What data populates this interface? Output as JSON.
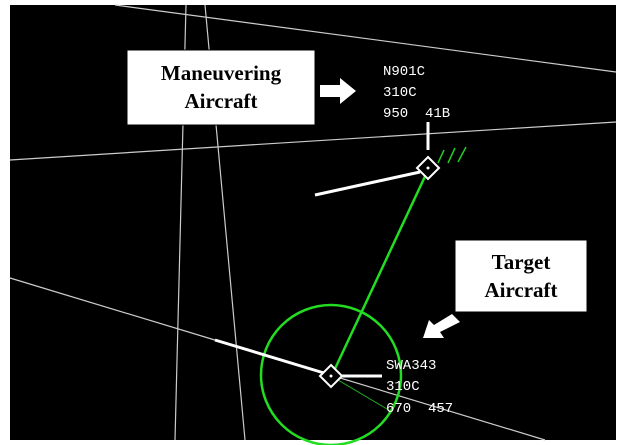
{
  "callouts": [
    {
      "lines": [
        "Maneuvering",
        "Aircraft"
      ]
    },
    {
      "lines": [
        "Target",
        "Aircraft"
      ]
    }
  ],
  "aircraft": [
    {
      "lines": [
        "N901C",
        "310C",
        "950  41B"
      ]
    },
    {
      "lines": [
        "SWA343",
        "310C",
        "670  457"
      ]
    }
  ]
}
